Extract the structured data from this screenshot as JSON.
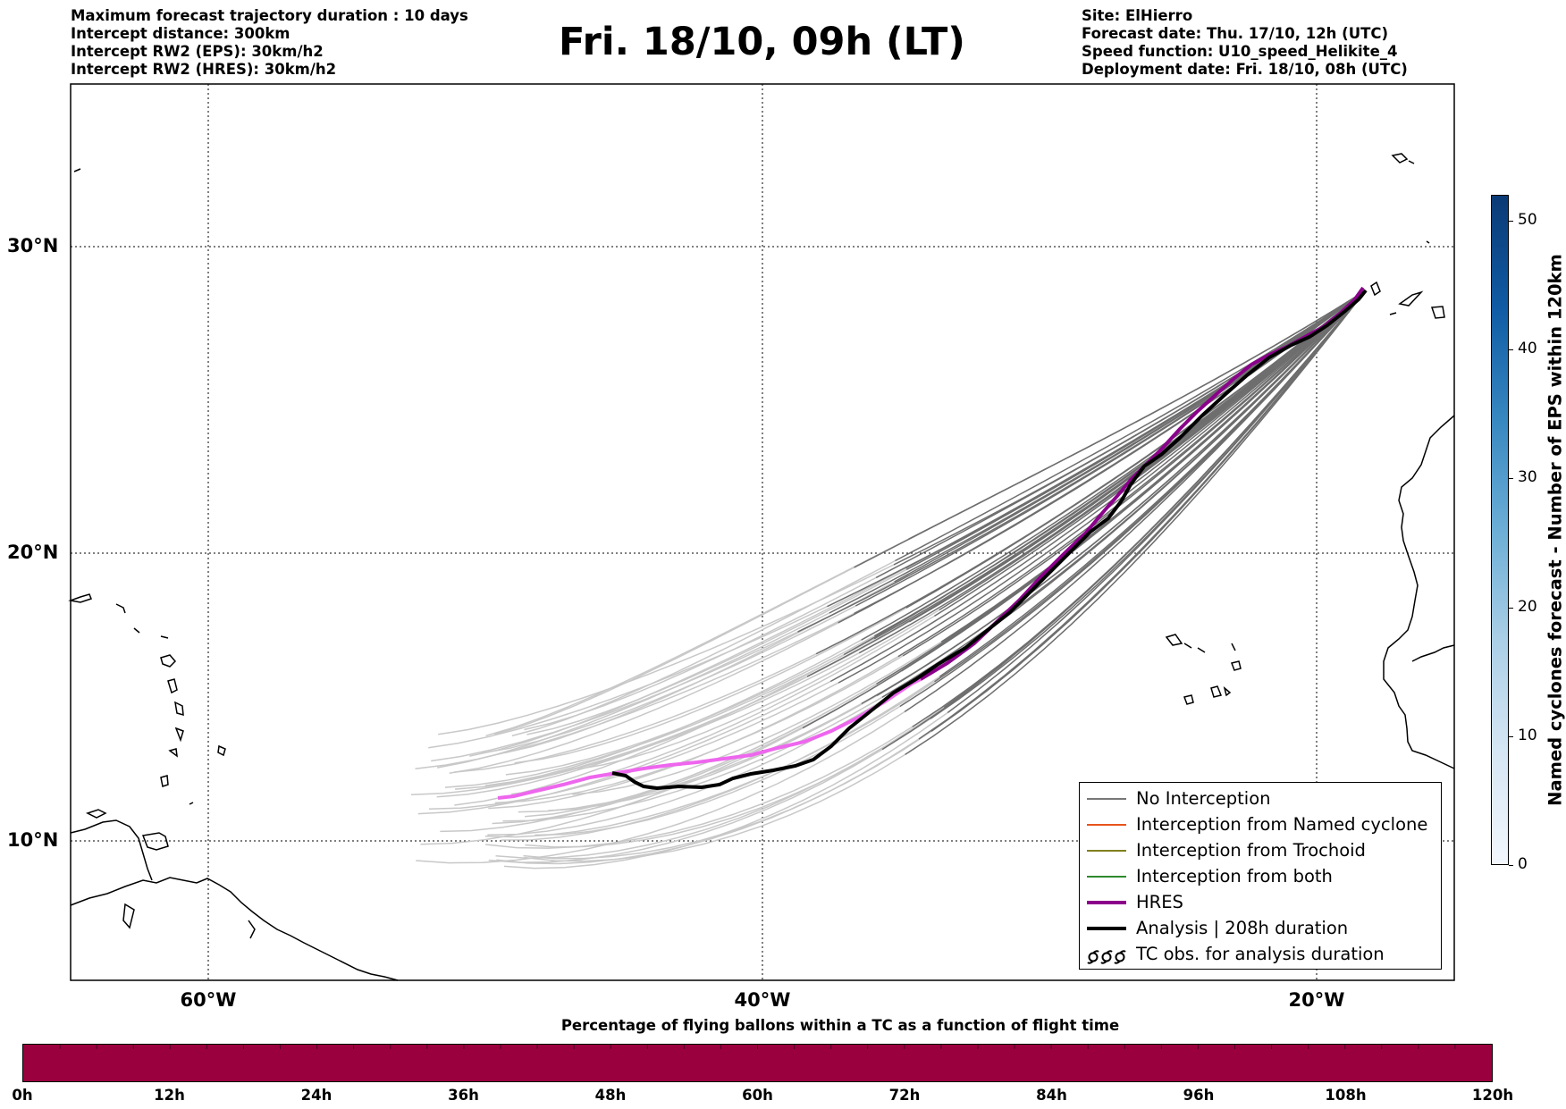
{
  "header": {
    "title": "Fri. 18/10, 09h (LT)",
    "left_lines": [
      "Maximum forecast trajectory duration : 10 days",
      "Intercept distance: 300km",
      "Intercept RW2 (EPS):  30km/h2",
      "Intercept RW2 (HRES): 30km/h2"
    ],
    "right_lines": [
      "Site: ElHierro",
      "Forecast date: Thu. 17/10, 12h (UTC)",
      "Speed function: U10_speed_Helikite_4",
      "Deployment date: Fri. 18/10, 08h (UTC)"
    ]
  },
  "map": {
    "lat_labels": [
      "30°N",
      "20°N",
      "10°N"
    ],
    "lon_labels": [
      "60°W",
      "40°W",
      "20°W"
    ],
    "extent": {
      "lon_min": -65,
      "lon_max": -15,
      "lat_min": 4.6,
      "lat_max": 35.4
    }
  },
  "legend": {
    "items": [
      {
        "label": "No Interception",
        "color": "#777777"
      },
      {
        "label": "Interception from Named cyclone",
        "color": "#e8541c"
      },
      {
        "label": "Interception from Trochoid",
        "color": "#7f7f1f"
      },
      {
        "label": "Interception from both",
        "color": "#2e8b2e"
      },
      {
        "label": "HRES",
        "color": "#8b008b"
      },
      {
        "label": "Analysis | 208h duration",
        "color": "#000000"
      },
      {
        "label": "TC obs. for analysis duration",
        "icon": "tc-symbol-icon"
      }
    ]
  },
  "colorbar": {
    "label": "Named cyclones forecast - Number of EPS within 120km",
    "ticks": [
      "0",
      "10",
      "20",
      "30",
      "40",
      "50"
    ],
    "range": [
      0,
      52
    ]
  },
  "bottom_bar": {
    "title": "Percentage of flying ballons within a TC as a function of flight time",
    "color": "#9b003e",
    "ticks": [
      "0h",
      "12h",
      "24h",
      "36h",
      "48h",
      "60h",
      "72h",
      "84h",
      "96h",
      "108h",
      "120h"
    ]
  }
}
